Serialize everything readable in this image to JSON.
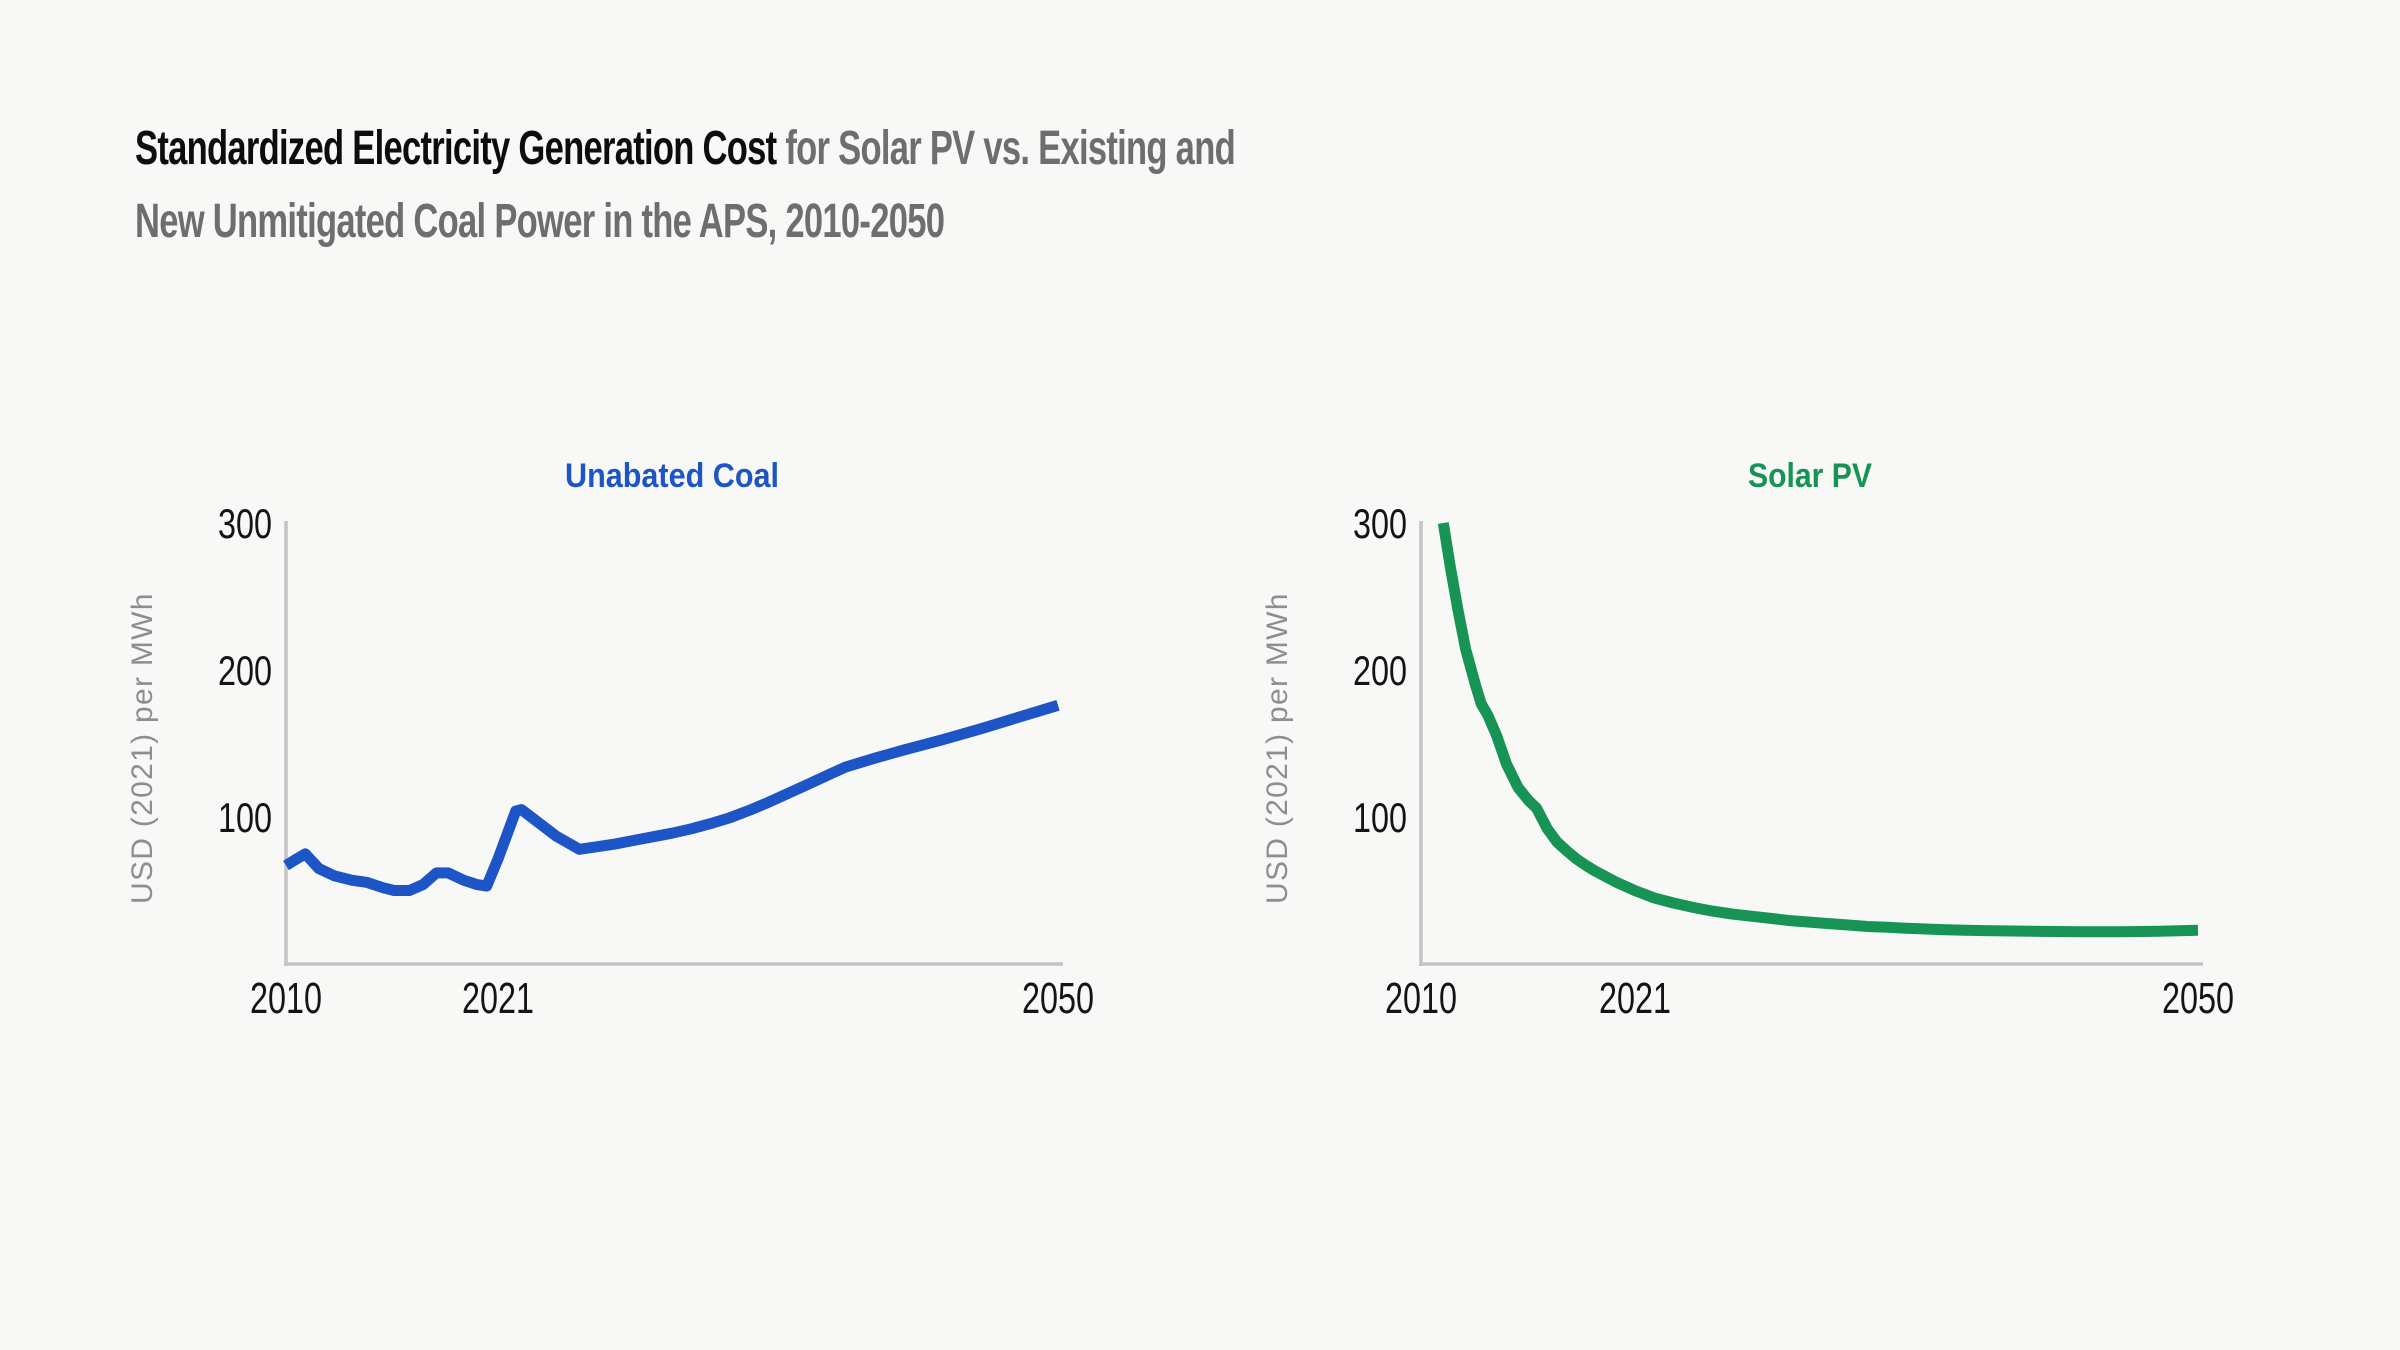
{
  "background": "#f8f8f6",
  "header": {
    "title_black": "Standardized Electricity Generation Cost",
    "title_gray_line1": " for Solar PV vs. Existing and",
    "title_gray_line2": "New Unmitigated Coal Power in the APS, 2010-2050",
    "black_color": "#0d0d0d",
    "gray_color": "#6e6e6e"
  },
  "style": {
    "axis_color": "#c4c4c4",
    "tick_label_color": "#141414",
    "ylabel_color": "#8e8e8e",
    "line_width": 11
  },
  "chart_data": [
    {
      "type": "line",
      "panel": "left",
      "title": "Unabated Coal",
      "color": "#1d54c6",
      "ylabel": "USD (2021) per MWh",
      "xlabel": "",
      "xlim": [
        2010,
        2050
      ],
      "ylim": [
        0,
        300
      ],
      "x_ticks": [
        "2010",
        "2021",
        "2050"
      ],
      "x_tick_years": [
        2010,
        2021,
        2050
      ],
      "y_ticks": [
        "100",
        "200",
        "300"
      ],
      "grid": false,
      "legend": "none",
      "points": [
        [
          2010,
          67
        ],
        [
          2010.5,
          71
        ],
        [
          2011,
          75
        ],
        [
          2011.7,
          65
        ],
        [
          2012.5,
          60
        ],
        [
          2013.4,
          57
        ],
        [
          2014.2,
          55.5
        ],
        [
          2015,
          52
        ],
        [
          2015.6,
          50
        ],
        [
          2016.4,
          50
        ],
        [
          2017.1,
          54
        ],
        [
          2017.8,
          62
        ],
        [
          2018.4,
          62
        ],
        [
          2019.2,
          57
        ],
        [
          2019.9,
          54
        ],
        [
          2020.4,
          53
        ],
        [
          2021,
          72
        ],
        [
          2021.9,
          104
        ],
        [
          2022.2,
          105
        ],
        [
          2023,
          97
        ],
        [
          2024,
          87
        ],
        [
          2025.2,
          78
        ],
        [
          2026,
          79.5
        ],
        [
          2027,
          81.5
        ],
        [
          2028,
          84
        ],
        [
          2029,
          86.5
        ],
        [
          2030,
          89
        ],
        [
          2031,
          92
        ],
        [
          2032,
          95.5
        ],
        [
          2033,
          99.5
        ],
        [
          2034,
          104.5
        ],
        [
          2035,
          110
        ],
        [
          2036,
          116
        ],
        [
          2037,
          122
        ],
        [
          2038,
          128
        ],
        [
          2039,
          134
        ],
        [
          2040.5,
          140
        ],
        [
          2042,
          145.5
        ],
        [
          2044,
          152.5
        ],
        [
          2046,
          160
        ],
        [
          2048,
          168
        ],
        [
          2050,
          176
        ]
      ]
    },
    {
      "type": "line",
      "panel": "right",
      "title": "Solar PV",
      "color": "#179355",
      "ylabel": "USD (2021) per MWh",
      "xlabel": "",
      "xlim": [
        2010,
        2050
      ],
      "ylim": [
        0,
        300
      ],
      "x_ticks": [
        "2010",
        "2021",
        "2050"
      ],
      "x_tick_years": [
        2010,
        2021,
        2050
      ],
      "y_ticks": [
        "100",
        "200",
        "300"
      ],
      "grid": false,
      "legend": "none",
      "clip_note": "line enters plot at the 300 top edge (values above 300 before ~2011.2 are clipped)",
      "points": [
        [
          2011.15,
          300
        ],
        [
          2011.5,
          271
        ],
        [
          2011.9,
          241
        ],
        [
          2012.3,
          214
        ],
        [
          2012.8,
          190
        ],
        [
          2013.1,
          177
        ],
        [
          2013.45,
          169
        ],
        [
          2013.9,
          155
        ],
        [
          2014.4,
          136
        ],
        [
          2015,
          120
        ],
        [
          2015.55,
          111
        ],
        [
          2015.95,
          106
        ],
        [
          2016.5,
          92
        ],
        [
          2017,
          83
        ],
        [
          2017.5,
          77
        ],
        [
          2018,
          71.5
        ],
        [
          2018.5,
          67
        ],
        [
          2019,
          63
        ],
        [
          2019.5,
          59.5
        ],
        [
          2020,
          56
        ],
        [
          2020.5,
          53
        ],
        [
          2021,
          50
        ],
        [
          2022,
          45
        ],
        [
          2023,
          41.5
        ],
        [
          2024,
          38.5
        ],
        [
          2025,
          36
        ],
        [
          2026,
          34
        ],
        [
          2027,
          32.5
        ],
        [
          2028,
          31
        ],
        [
          2029,
          29.5
        ],
        [
          2030,
          28.5
        ],
        [
          2031,
          27.5
        ],
        [
          2032,
          26.5
        ],
        [
          2033,
          25.5
        ],
        [
          2034,
          25
        ],
        [
          2035,
          24.3
        ],
        [
          2036,
          23.8
        ],
        [
          2037,
          23.3
        ],
        [
          2038,
          23
        ],
        [
          2039,
          22.7
        ],
        [
          2040,
          22.5
        ],
        [
          2042,
          22.2
        ],
        [
          2044,
          22
        ],
        [
          2046,
          22
        ],
        [
          2048,
          22.3
        ],
        [
          2050,
          23
        ]
      ]
    }
  ]
}
